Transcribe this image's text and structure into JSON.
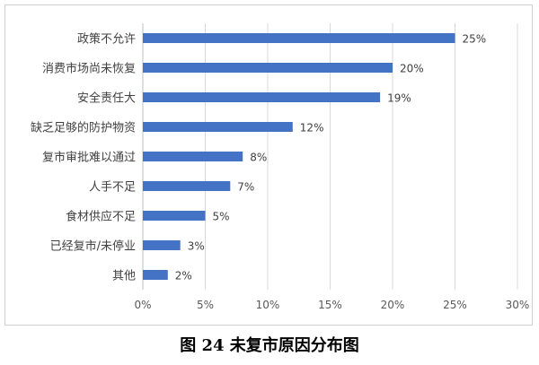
{
  "caption": "图 24 未复市原因分布图",
  "chart_data": {
    "type": "bar",
    "orientation": "horizontal",
    "categories": [
      "政策不允许",
      "消费市场尚未恢复",
      "安全责任大",
      "缺乏足够的防护物资",
      "复市审批难以通过",
      "人手不足",
      "食材供应不足",
      "已经复市/未停业",
      "其他"
    ],
    "values": [
      25,
      20,
      19,
      12,
      8,
      7,
      5,
      3,
      2
    ],
    "value_labels": [
      "25%",
      "20%",
      "19%",
      "12%",
      "8%",
      "7%",
      "5%",
      "3%",
      "2%"
    ],
    "xticks": [
      0,
      5,
      10,
      15,
      20,
      25,
      30
    ],
    "xtick_labels": [
      "0%",
      "5%",
      "10%",
      "15%",
      "20%",
      "25%",
      "30%"
    ],
    "xlim": [
      0,
      30
    ],
    "grid": "vertical",
    "bar_color": "#4472C4"
  }
}
